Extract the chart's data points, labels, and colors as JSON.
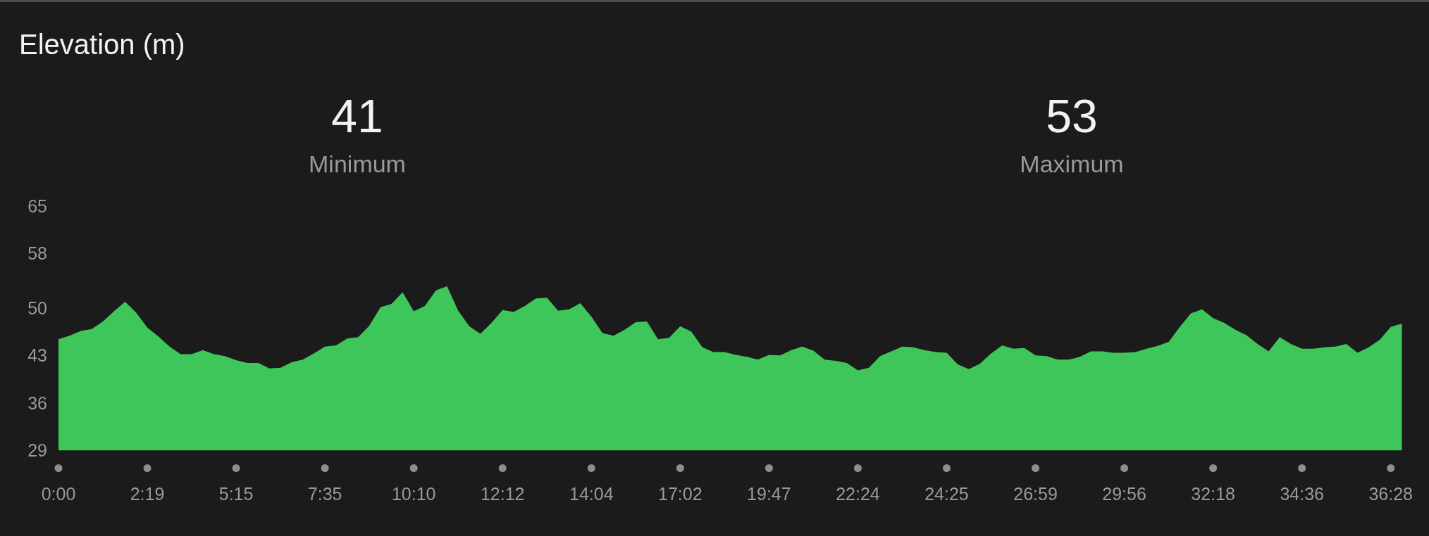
{
  "chart_data": {
    "type": "area",
    "title": "Elevation (m)",
    "annotations": [
      "41",
      "Minimum",
      "53",
      "Maximum"
    ],
    "categories": [
      "0:00",
      null,
      null,
      null,
      null,
      null,
      null,
      null,
      "2:19",
      null,
      null,
      null,
      null,
      null,
      null,
      null,
      "5:15",
      null,
      null,
      null,
      null,
      null,
      null,
      null,
      "7:35",
      null,
      null,
      null,
      null,
      null,
      null,
      null,
      "10:10",
      null,
      null,
      null,
      null,
      null,
      null,
      null,
      "12:12",
      null,
      null,
      null,
      null,
      null,
      null,
      null,
      "14:04",
      null,
      null,
      null,
      null,
      null,
      null,
      null,
      "17:02",
      null,
      null,
      null,
      null,
      null,
      null,
      null,
      "19:47",
      null,
      null,
      null,
      null,
      null,
      null,
      null,
      "22:24",
      null,
      null,
      null,
      null,
      null,
      null,
      null,
      "24:25",
      null,
      null,
      null,
      null,
      null,
      null,
      null,
      "26:59",
      null,
      null,
      null,
      null,
      null,
      null,
      null,
      "29:56",
      null,
      null,
      null,
      null,
      null,
      null,
      null,
      "32:18",
      null,
      null,
      null,
      null,
      null,
      null,
      null,
      "34:36",
      null,
      null,
      null,
      null,
      null,
      null,
      null,
      "36:28",
      null
    ],
    "values": [
      45.4,
      45.9,
      46.6,
      46.9,
      48.0,
      49.5,
      50.9,
      49.3,
      47.1,
      45.8,
      44.3,
      43.2,
      43.2,
      43.8,
      43.2,
      42.9,
      42.3,
      41.9,
      41.9,
      41.1,
      41.2,
      42.0,
      42.4,
      43.3,
      44.3,
      44.5,
      45.5,
      45.7,
      47.4,
      50.1,
      50.6,
      52.3,
      49.5,
      50.3,
      52.6,
      53.2,
      49.6,
      47.3,
      46.2,
      47.8,
      49.7,
      49.4,
      50.3,
      51.4,
      51.5,
      49.6,
      49.8,
      50.7,
      48.7,
      46.3,
      45.9,
      46.8,
      47.9,
      48.0,
      45.4,
      45.6,
      47.3,
      46.5,
      44.2,
      43.5,
      43.5,
      43.1,
      42.8,
      42.4,
      43.1,
      43.0,
      43.8,
      44.3,
      43.7,
      42.4,
      42.2,
      41.9,
      40.8,
      41.2,
      42.9,
      43.6,
      44.3,
      44.2,
      43.8,
      43.5,
      43.4,
      41.7,
      41.0,
      41.8,
      43.3,
      44.5,
      44.0,
      44.1,
      43.0,
      42.9,
      42.4,
      42.4,
      42.8,
      43.6,
      43.6,
      43.4,
      43.4,
      43.5,
      44.0,
      44.4,
      45.0,
      47.2,
      49.2,
      49.8,
      48.5,
      47.8,
      46.8,
      46.0,
      44.7,
      43.6,
      45.7,
      44.7,
      44.0,
      44.0,
      44.2,
      44.3,
      44.7,
      43.4,
      44.2,
      45.3,
      47.2,
      47.7
    ],
    "color": "#3ec65a",
    "ylim": [
      29,
      65
    ],
    "yticks": [
      29,
      36,
      43,
      50,
      58,
      65
    ]
  }
}
